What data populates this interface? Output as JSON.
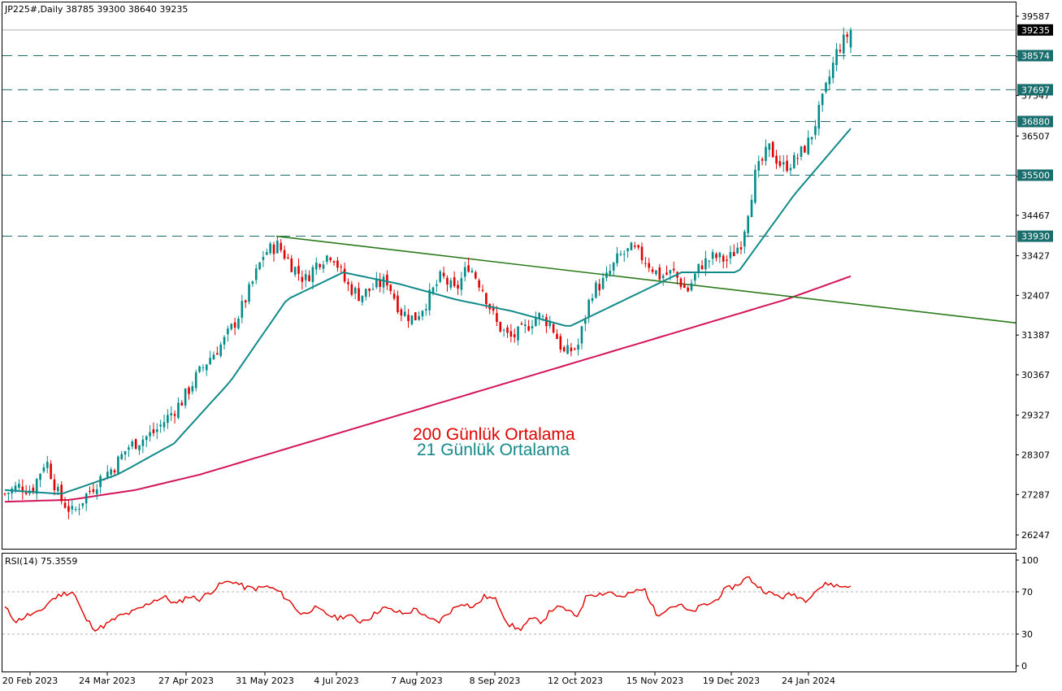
{
  "header": {
    "symbol_line": "JP225#,Daily  38785 39300 38640 39235",
    "rsi_label": "RSI(14) 75.3559"
  },
  "annotations": {
    "ma200_label": "200 Günlük Ortalama",
    "ma21_label": "21 Günlük Ortalama"
  },
  "colors": {
    "bull_candle": "#008b8b",
    "bear_candle": "#e00000",
    "ma21": "#138a8a",
    "ma200": "#d4145a",
    "trendline": "#2a7a1a",
    "rsi": "#e00000",
    "level_line": "#1e6e6e",
    "ma200_text": "#e00000",
    "ma21_text": "#138a8a"
  },
  "chart_data": {
    "type": "candlestick",
    "symbol": "JP225#",
    "timeframe": "Daily",
    "last_bar": {
      "open": 38785,
      "high": 39300,
      "low": 38640,
      "close": 39235
    },
    "price_axis": {
      "ticks": [
        39587,
        38547,
        37547,
        36507,
        35467,
        34467,
        33427,
        32407,
        31387,
        30367,
        29327,
        28307,
        27287,
        26247
      ],
      "ylim": [
        25800,
        40000
      ]
    },
    "current_price": "39235",
    "levels": [
      "38574",
      "37697",
      "36880",
      "35500",
      "33930"
    ],
    "date_axis": [
      "20 Feb 2023",
      "24 Mar 2023",
      "27 Apr 2023",
      "31 May 2023",
      "4 Jul 2023",
      "7 Aug 2023",
      "8 Sep 2023",
      "12 Oct 2023",
      "15 Nov 2023",
      "19 Dec 2023",
      "24 Jan 2024"
    ],
    "closes_weekly": [
      27300,
      27500,
      27400,
      28200,
      27200,
      26800,
      27300,
      27700,
      28000,
      28500,
      28700,
      28900,
      29300,
      29700,
      30300,
      30800,
      31200,
      31800,
      32600,
      33500,
      33700,
      33200,
      32800,
      33300,
      33500,
      32700,
      32400,
      32600,
      32800,
      32000,
      31800,
      32300,
      32900,
      32500,
      33200,
      32600,
      31700,
      31300,
      31500,
      31900,
      31700,
      30900,
      31100,
      32500,
      32800,
      33400,
      33600,
      33300,
      32900,
      33000,
      32500,
      33200,
      33400,
      33300,
      33800,
      35500,
      36200,
      35700,
      35900,
      36400,
      37500,
      38700,
      39235
    ],
    "trendline": {
      "from": {
        "date": "30 May 2023",
        "value": 33930
      },
      "to_value_at_right_edge": 31700
    },
    "series": [
      {
        "name": "200 Günlük Ortalama",
        "values_weekly_sample": [
          27100,
          27150,
          27400,
          27800,
          28300,
          28800,
          29300,
          29800,
          30300,
          30800,
          31300,
          31800,
          32300,
          32900
        ]
      },
      {
        "name": "21 Günlük Ortalama",
        "values_weekly_sample": [
          27400,
          27300,
          27800,
          28600,
          30200,
          32300,
          33000,
          32700,
          32300,
          32000,
          31600,
          32300,
          33000,
          33000,
          35000,
          36700
        ]
      }
    ],
    "rsi": {
      "period": 14,
      "value": 75.3559,
      "ticks": [
        100,
        70,
        30,
        0
      ],
      "ylim": [
        0,
        100
      ],
      "levels": [
        70,
        30
      ],
      "values_sample": [
        55,
        42,
        48,
        50,
        62,
        68,
        70,
        45,
        34,
        40,
        47,
        50,
        55,
        62,
        65,
        58,
        66,
        63,
        70,
        78,
        80,
        74,
        73,
        75,
        70,
        60,
        48,
        55,
        50,
        45,
        48,
        42,
        46,
        55,
        52,
        49,
        54,
        44,
        42,
        52,
        60,
        55,
        66,
        62,
        40,
        34,
        44,
        42,
        55,
        54,
        46,
        68,
        68,
        70,
        64,
        70,
        72,
        48,
        55,
        58,
        50,
        57,
        60,
        72,
        76,
        84,
        74,
        68,
        65,
        68,
        62,
        72,
        78,
        75,
        76
      ]
    }
  }
}
